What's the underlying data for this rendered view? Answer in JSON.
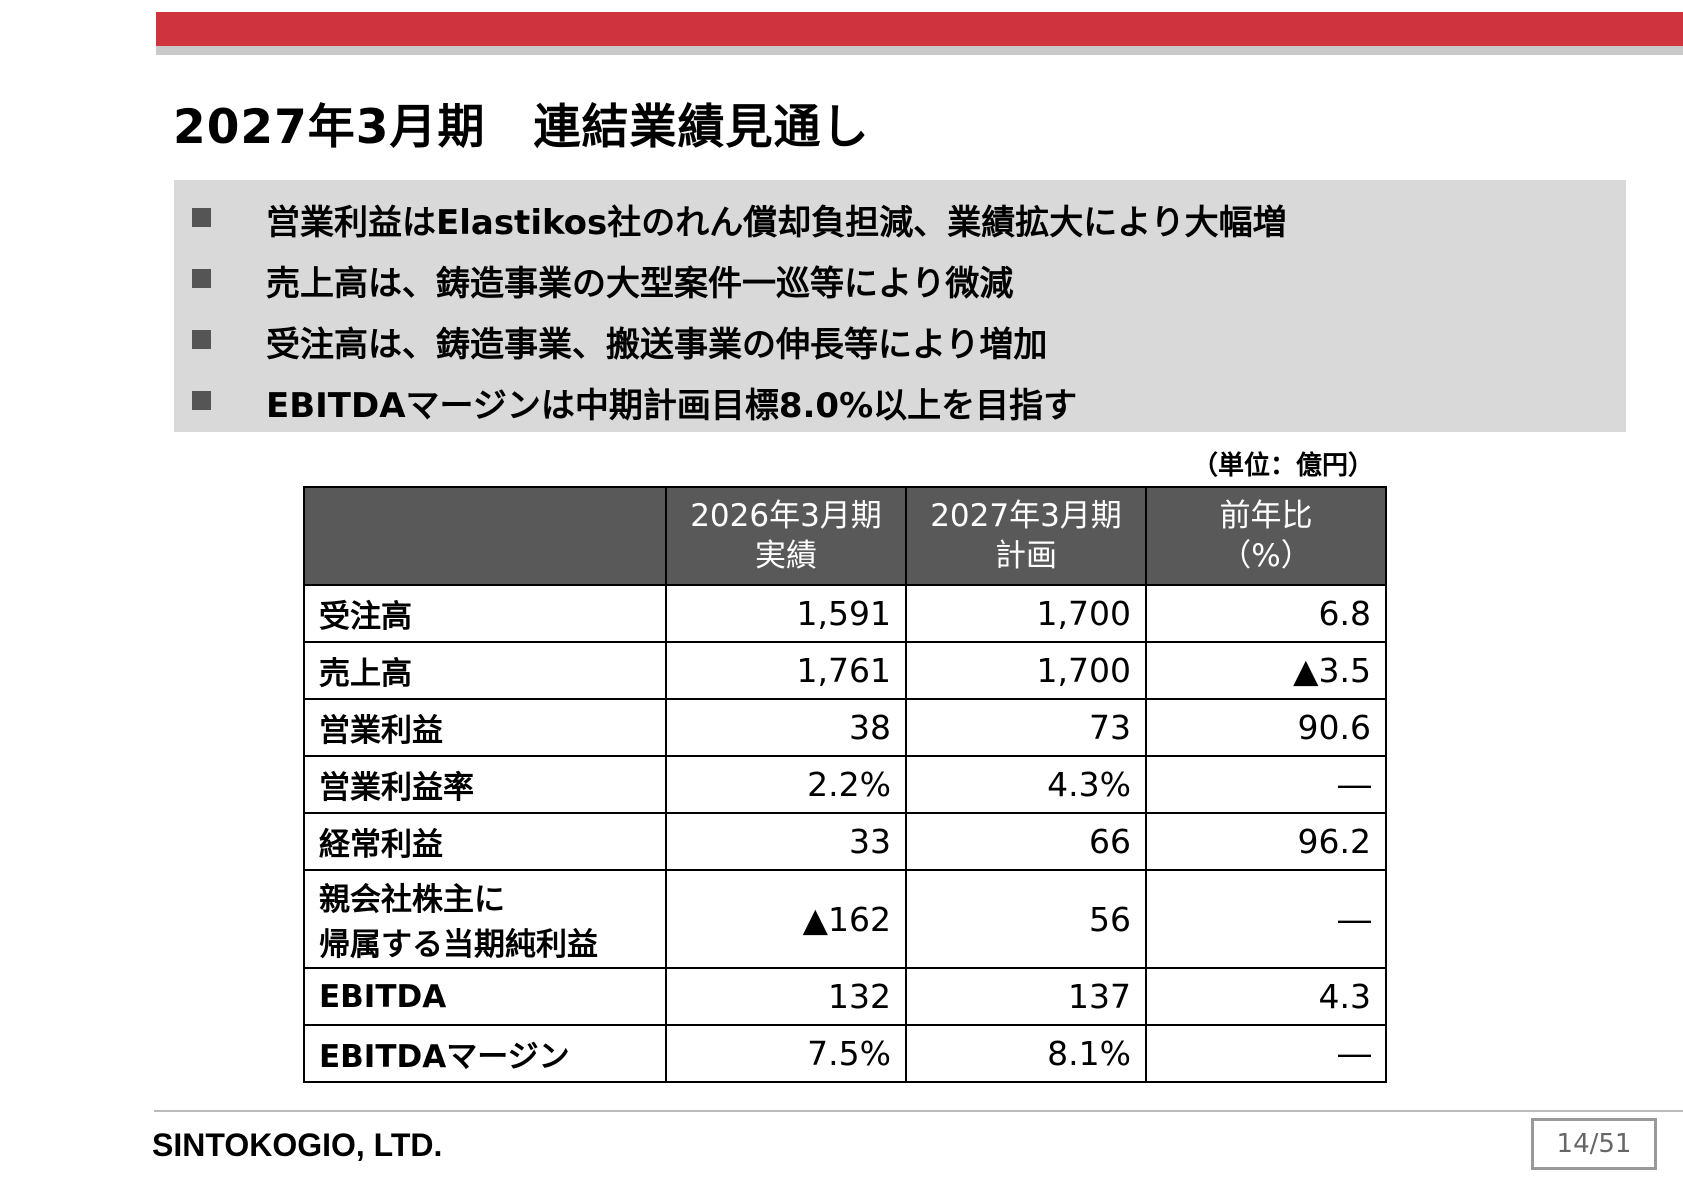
{
  "header": {
    "accent_color": "#cf333d",
    "title": "2027年3月期　連結業績見通し"
  },
  "bullets": [
    "営業利益はElastikos社のれん償却負担減、業績拡大により大幅増",
    "売上高は、鋳造事業の大型案件一巡等により微減",
    "受注高は、鋳造事業、搬送事業の伸長等により増加",
    "EBITDAマージンは中期計画目標8.0%以上を目指す"
  ],
  "unit_note": "（単位：億円）",
  "table": {
    "headers": [
      "",
      [
        "2026年3月期",
        "実績"
      ],
      [
        "2027年3月期",
        "計画"
      ],
      [
        "前年比",
        "（%）"
      ]
    ],
    "rows": [
      {
        "label": [
          "受注高"
        ],
        "fy2026": "1,591",
        "fy2027": "1,700",
        "yoy": "6.8"
      },
      {
        "label": [
          "売上高"
        ],
        "fy2026": "1,761",
        "fy2027": "1,700",
        "yoy": "▲3.5"
      },
      {
        "label": [
          "営業利益"
        ],
        "fy2026": "38",
        "fy2027": "73",
        "yoy": "90.6"
      },
      {
        "label": [
          "営業利益率"
        ],
        "fy2026": "2.2%",
        "fy2027": "4.3%",
        "yoy": "―"
      },
      {
        "label": [
          "経常利益"
        ],
        "fy2026": "33",
        "fy2027": "66",
        "yoy": "96.2"
      },
      {
        "label": [
          "親会社株主に",
          "帰属する当期純利益"
        ],
        "fy2026": "▲162",
        "fy2027": "56",
        "yoy": "―"
      },
      {
        "label": [
          "EBITDA"
        ],
        "fy2026": "132",
        "fy2027": "137",
        "yoy": "4.3"
      },
      {
        "label": [
          "EBITDAマージン"
        ],
        "fy2026": "7.5%",
        "fy2027": "8.1%",
        "yoy": "―"
      }
    ]
  },
  "footer": {
    "company": "SINTOKOGIO, LTD.",
    "page": "14/51"
  }
}
